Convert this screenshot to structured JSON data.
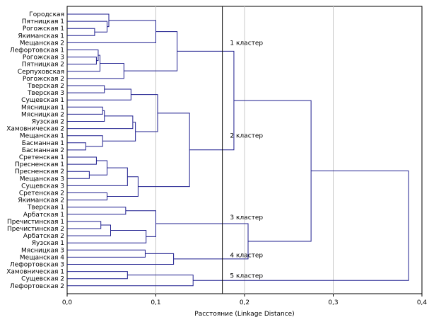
{
  "chart_data": {
    "type": "dendrogram",
    "xlabel": "Расстояние (Linkage Distance)",
    "xlim": [
      0,
      0.4
    ],
    "xticks": [
      0,
      0.1,
      0.2,
      0.3,
      0.4
    ],
    "xtick_labels": [
      "0,0",
      "0,1",
      "0,2",
      "0,3",
      "0,4"
    ],
    "grid": true,
    "cut_line": 0.175,
    "leaves": [
      "Городская",
      "Пятницкая 1",
      "Рогожская 1",
      "Якиманская 1",
      "Мещанская 2",
      "Лефортовская 1",
      "Рогожская 3",
      "Пятницкая 2",
      "Серпуховская",
      "Рогожская 2",
      "Тверская 2",
      "Тверская 3",
      "Сущевская 1",
      "Мясницкая 1",
      "Мясницкая 2",
      "Яузская 2",
      "Хамовническая 2",
      "Мещанская 1",
      "Басманная 1",
      "Басманная 2",
      "Сретенская 1",
      "Пресненская 1",
      "Пресненская 2",
      "Мещанская 3",
      "Сущевская 3",
      "Сретенская 2",
      "Якиманская 2",
      "Тверская 1",
      "Арбатская 1",
      "Пречистинская 1",
      "Пречистинская 2",
      "Арбатская 2",
      "Яузская 1",
      "Мясницкая 3",
      "Мещанская 4",
      "Лефортовская 3",
      "Хамовническая 1",
      "Сущевская 2",
      "Лефортовская 2"
    ],
    "merges": [
      {
        "a": 2,
        "b": 3,
        "h": 0.031
      },
      {
        "a": 1,
        "b": "m0",
        "h": 0.045
      },
      {
        "a": 0,
        "b": "m1",
        "h": 0.047
      },
      {
        "a": "m2",
        "b": 4,
        "h": 0.1
      },
      {
        "a": 6,
        "b": 7,
        "h": 0.033
      },
      {
        "a": 5,
        "b": "m4",
        "h": 0.035
      },
      {
        "a": "m5",
        "b": 8,
        "h": 0.037
      },
      {
        "a": "m6",
        "b": 9,
        "h": 0.064
      },
      {
        "a": "m3",
        "b": "m7",
        "h": 0.124
      },
      {
        "a": 10,
        "b": 11,
        "h": 0.042
      },
      {
        "a": "m9",
        "b": 12,
        "h": 0.072
      },
      {
        "a": 13,
        "b": 14,
        "h": 0.04
      },
      {
        "a": "m11",
        "b": 15,
        "h": 0.042
      },
      {
        "a": "m12",
        "b": 16,
        "h": 0.074
      },
      {
        "a": 18,
        "b": 19,
        "h": 0.021
      },
      {
        "a": 17,
        "b": "m14",
        "h": 0.04
      },
      {
        "a": "m15",
        "b": "m13",
        "h": 0.077
      },
      {
        "a": "m10",
        "b": "m16",
        "h": 0.102
      },
      {
        "a": 22,
        "b": 23,
        "h": 0.025
      },
      {
        "a": 20,
        "b": 21,
        "h": 0.033
      },
      {
        "a": "m19",
        "b": "m18",
        "h": 0.045
      },
      {
        "a": "m20",
        "b": 24,
        "h": 0.068
      },
      {
        "a": 25,
        "b": 26,
        "h": 0.045
      },
      {
        "a": "m21",
        "b": "m22",
        "h": 0.08
      },
      {
        "a": "m17",
        "b": "m23",
        "h": 0.138
      },
      {
        "a": "m8",
        "b": "m24",
        "h": 0.188
      },
      {
        "a": 29,
        "b": 30,
        "h": 0.038
      },
      {
        "a": "m26",
        "b": 31,
        "h": 0.049
      },
      {
        "a": "m27",
        "b": 32,
        "h": 0.089
      },
      {
        "a": 27,
        "b": 28,
        "h": 0.066
      },
      {
        "a": "m29",
        "b": "m28",
        "h": 0.1
      },
      {
        "a": 33,
        "b": 34,
        "h": 0.088
      },
      {
        "a": "m31",
        "b": 35,
        "h": 0.12
      },
      {
        "a": "m30",
        "b": "m32",
        "h": 0.204
      },
      {
        "a": "m25",
        "b": "m33",
        "h": 0.275
      },
      {
        "a": 36,
        "b": 37,
        "h": 0.068
      },
      {
        "a": "m35",
        "b": 38,
        "h": 0.142
      },
      {
        "a": "m34",
        "b": "m36",
        "h": 0.385
      }
    ],
    "annotations": [
      {
        "text": "1 кластер",
        "x": 0.182,
        "row": 4
      },
      {
        "text": "2 кластер",
        "x": 0.182,
        "row": 17
      },
      {
        "text": "3 кластер",
        "x": 0.182,
        "row": 28.4
      },
      {
        "text": "4 кластер",
        "x": 0.182,
        "row": 33.7
      },
      {
        "text": "5 кластер",
        "x": 0.182,
        "row": 36.6
      }
    ],
    "colors": {
      "tree": "#1f1f8f",
      "grid": "#c8c8c8",
      "cut_line": "#000000",
      "text": "#000000"
    }
  }
}
